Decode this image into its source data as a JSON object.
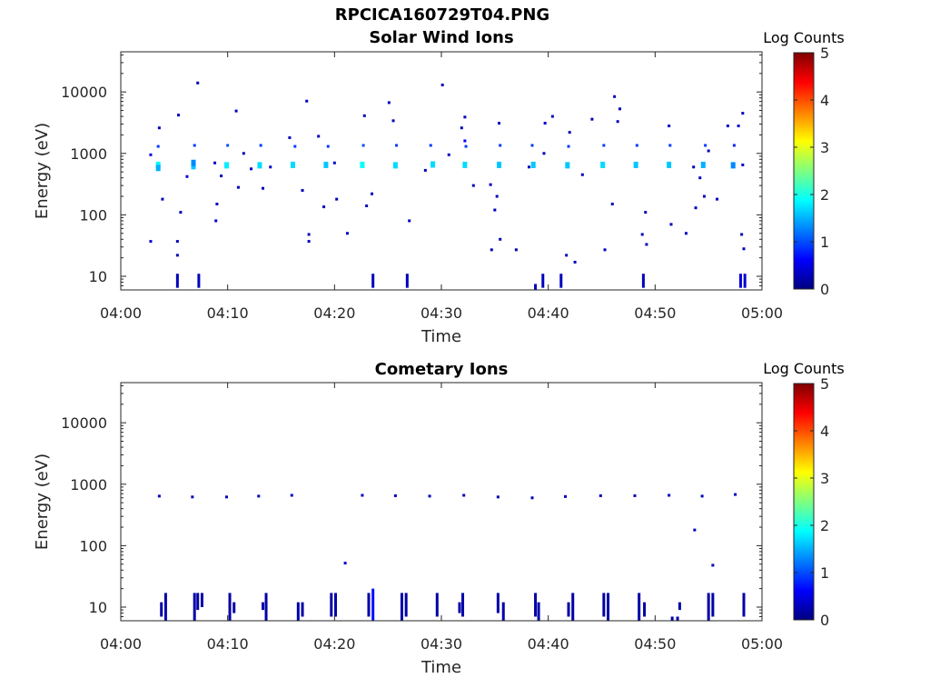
{
  "figure": {
    "title": "RPCICA160729T04.PNG"
  },
  "colormap": {
    "stops": [
      "#00007f",
      "#0000ff",
      "#007fff",
      "#00ffff",
      "#7fff7f",
      "#ffff00",
      "#ff7f00",
      "#ff0000",
      "#7f0000"
    ]
  },
  "chart_data": [
    {
      "type": "heatmap",
      "title": "Solar Wind Ions",
      "xlabel": "Time",
      "ylabel": "Energy (eV)",
      "x_unit": "minutes after 04:00",
      "x_range": [
        0,
        60
      ],
      "x_ticks": [
        0,
        10,
        20,
        30,
        40,
        50,
        60
      ],
      "x_tick_labels": [
        "04:00",
        "04:10",
        "04:20",
        "04:30",
        "04:40",
        "04:50",
        "05:00"
      ],
      "y_scale": "log",
      "y_range": [
        6,
        45000
      ],
      "y_ticks": [
        10,
        100,
        1000,
        10000
      ],
      "y_tick_labels": [
        "10",
        "100",
        "1000",
        "10000"
      ],
      "colorbar": {
        "label": "Log Counts",
        "range": [
          0,
          5
        ],
        "ticks": [
          0,
          1,
          2,
          3,
          4,
          5
        ]
      },
      "points": [
        [
          3.5,
          650,
          1.9
        ],
        [
          3.5,
          580,
          1.5
        ],
        [
          3.5,
          1300,
          0.9
        ],
        [
          2.8,
          950,
          0.4
        ],
        [
          3.6,
          2600,
          0.3
        ],
        [
          2.8,
          37,
          0.4
        ],
        [
          6.8,
          620,
          1.6
        ],
        [
          6.8,
          700,
          1.3
        ],
        [
          6.9,
          1350,
          0.9
        ],
        [
          6.2,
          420,
          0.4
        ],
        [
          5.6,
          110,
          0.3
        ],
        [
          5.4,
          4200,
          0.3
        ],
        [
          5.3,
          37,
          0.3
        ],
        [
          5.3,
          22,
          0.3
        ],
        [
          9.9,
          640,
          1.8
        ],
        [
          10.0,
          1350,
          1.0
        ],
        [
          9.0,
          150,
          0.3
        ],
        [
          8.9,
          80,
          0.4
        ],
        [
          8.8,
          700,
          0.3
        ],
        [
          10.8,
          4900,
          0.3
        ],
        [
          11.0,
          280,
          0.3
        ],
        [
          13.0,
          640,
          1.7
        ],
        [
          13.1,
          1350,
          0.9
        ],
        [
          14.0,
          600,
          0.3
        ],
        [
          12.2,
          560,
          0.3
        ],
        [
          13.3,
          270,
          0.3
        ],
        [
          15.8,
          1800,
          0.3
        ],
        [
          16.1,
          650,
          1.7
        ],
        [
          16.3,
          1300,
          0.9
        ],
        [
          17.4,
          7100,
          0.3
        ],
        [
          17.0,
          250,
          0.3
        ],
        [
          17.6,
          48,
          0.3
        ],
        [
          17.6,
          37,
          0.3
        ],
        [
          19.2,
          650,
          1.6
        ],
        [
          19.4,
          1300,
          0.9
        ],
        [
          20.0,
          700,
          0.4
        ],
        [
          18.5,
          1900,
          0.3
        ],
        [
          19.0,
          135,
          0.3
        ],
        [
          20.2,
          180,
          0.3
        ],
        [
          21.2,
          50,
          0.3
        ],
        [
          22.6,
          650,
          1.9
        ],
        [
          22.7,
          1350,
          1.0
        ],
        [
          23.5,
          220,
          0.3
        ],
        [
          23.0,
          140,
          0.3
        ],
        [
          22.8,
          4100,
          0.3
        ],
        [
          25.1,
          6700,
          0.3
        ],
        [
          25.5,
          3400,
          0.3
        ],
        [
          25.7,
          640,
          1.7
        ],
        [
          25.8,
          1350,
          0.9
        ],
        [
          27.0,
          80,
          0.3
        ],
        [
          29.2,
          660,
          1.7
        ],
        [
          29.0,
          1350,
          0.9
        ],
        [
          28.5,
          530,
          0.3
        ],
        [
          30.1,
          13000,
          0.3
        ],
        [
          30.7,
          950,
          0.3
        ],
        [
          32.2,
          3900,
          0.3
        ],
        [
          31.9,
          2600,
          0.3
        ],
        [
          32.2,
          650,
          1.7
        ],
        [
          32.3,
          1300,
          0.9
        ],
        [
          32.2,
          1600,
          0.6
        ],
        [
          33.0,
          300,
          0.3
        ],
        [
          34.6,
          310,
          0.3
        ],
        [
          35.4,
          650,
          1.6
        ],
        [
          35.5,
          1350,
          0.9
        ],
        [
          35.4,
          3100,
          0.3
        ],
        [
          35.2,
          200,
          0.3
        ],
        [
          35.0,
          120,
          0.3
        ],
        [
          35.5,
          40,
          0.3
        ],
        [
          34.7,
          27,
          0.3
        ],
        [
          38.6,
          650,
          1.6
        ],
        [
          38.5,
          1350,
          0.9
        ],
        [
          39.6,
          1000,
          0.3
        ],
        [
          39.7,
          3100,
          0.4
        ],
        [
          40.4,
          4000,
          0.3
        ],
        [
          38.2,
          600,
          0.3
        ],
        [
          37.0,
          27,
          0.3
        ],
        [
          41.8,
          640,
          1.6
        ],
        [
          41.9,
          1300,
          0.9
        ],
        [
          42.0,
          2200,
          0.3
        ],
        [
          43.2,
          450,
          0.3
        ],
        [
          44.1,
          3600,
          0.3
        ],
        [
          41.7,
          22,
          0.3
        ],
        [
          42.5,
          17,
          0.3
        ],
        [
          45.1,
          650,
          1.7
        ],
        [
          45.2,
          1350,
          0.9
        ],
        [
          45.3,
          27,
          0.3
        ],
        [
          46.0,
          150,
          0.3
        ],
        [
          46.2,
          8400,
          0.3
        ],
        [
          46.7,
          5300,
          0.3
        ],
        [
          46.5,
          3300,
          0.3
        ],
        [
          48.2,
          650,
          1.6
        ],
        [
          48.3,
          1350,
          0.9
        ],
        [
          48.8,
          48,
          0.3
        ],
        [
          49.1,
          110,
          0.3
        ],
        [
          49.2,
          33,
          0.3
        ],
        [
          51.3,
          650,
          1.6
        ],
        [
          51.4,
          1350,
          0.9
        ],
        [
          51.3,
          2800,
          0.3
        ],
        [
          51.5,
          70,
          0.3
        ],
        [
          52.9,
          50,
          0.3
        ],
        [
          53.8,
          130,
          0.3
        ],
        [
          54.5,
          650,
          1.5
        ],
        [
          54.7,
          1350,
          0.9
        ],
        [
          53.6,
          600,
          0.3
        ],
        [
          54.2,
          400,
          0.3
        ],
        [
          54.6,
          200,
          0.3
        ],
        [
          55.0,
          1100,
          0.3
        ],
        [
          55.8,
          180,
          0.3
        ],
        [
          57.3,
          640,
          1.3
        ],
        [
          57.4,
          1350,
          0.8
        ],
        [
          56.8,
          2800,
          0.3
        ],
        [
          57.8,
          2800,
          0.4
        ],
        [
          58.2,
          4500,
          0.3
        ],
        [
          58.2,
          650,
          0.3
        ],
        [
          58.1,
          48,
          0.3
        ],
        [
          58.3,
          28,
          0.3
        ],
        [
          7.2,
          14000,
          0.3
        ],
        [
          3.9,
          180,
          0.3
        ],
        [
          9.4,
          430,
          0.3
        ],
        [
          11.5,
          1000,
          0.3
        ]
      ],
      "vbars": [
        [
          5.3,
          6.5,
          11,
          0.3
        ],
        [
          7.3,
          6.5,
          11,
          0.3
        ],
        [
          23.6,
          6.5,
          11,
          0.3
        ],
        [
          26.8,
          6.5,
          11,
          0.3
        ],
        [
          38.8,
          6,
          7.5,
          0.3
        ],
        [
          39.5,
          6.5,
          11,
          0.3
        ],
        [
          41.2,
          6.5,
          11,
          0.3
        ],
        [
          48.9,
          6.5,
          11,
          0.3
        ],
        [
          58.0,
          6.5,
          11,
          0.4
        ],
        [
          58.4,
          6.5,
          11,
          0.4
        ]
      ]
    },
    {
      "type": "heatmap",
      "title": "Cometary Ions",
      "xlabel": "Time",
      "ylabel": "Energy (eV)",
      "x_unit": "minutes after 04:00",
      "x_range": [
        0,
        60
      ],
      "x_ticks": [
        0,
        10,
        20,
        30,
        40,
        50,
        60
      ],
      "x_tick_labels": [
        "04:00",
        "04:10",
        "04:20",
        "04:30",
        "04:40",
        "04:50",
        "05:00"
      ],
      "y_scale": "log",
      "y_range": [
        6,
        45000
      ],
      "y_ticks": [
        10,
        100,
        1000,
        10000
      ],
      "y_tick_labels": [
        "10",
        "100",
        "1000",
        "10000"
      ],
      "colorbar": {
        "label": "Log Counts",
        "range": [
          0,
          5
        ],
        "ticks": [
          0,
          1,
          2,
          3,
          4,
          5
        ]
      },
      "points": [
        [
          3.6,
          640,
          0.3
        ],
        [
          6.7,
          620,
          0.3
        ],
        [
          9.9,
          620,
          0.3
        ],
        [
          12.9,
          640,
          0.3
        ],
        [
          16.0,
          660,
          0.3
        ],
        [
          22.6,
          660,
          0.3
        ],
        [
          25.7,
          650,
          0.3
        ],
        [
          28.9,
          640,
          0.3
        ],
        [
          32.1,
          660,
          0.3
        ],
        [
          35.3,
          620,
          0.3
        ],
        [
          38.5,
          600,
          0.3
        ],
        [
          41.6,
          630,
          0.3
        ],
        [
          44.9,
          650,
          0.3
        ],
        [
          48.1,
          650,
          0.3
        ],
        [
          51.3,
          660,
          0.3
        ],
        [
          54.4,
          640,
          0.3
        ],
        [
          57.5,
          680,
          0.3
        ],
        [
          53.7,
          180,
          0.3
        ],
        [
          21.0,
          52,
          0.3
        ],
        [
          55.4,
          48,
          0.3
        ]
      ],
      "vbars": [
        [
          3.8,
          7,
          12,
          0.2
        ],
        [
          4.2,
          6,
          17,
          0.2
        ],
        [
          6.9,
          6,
          17,
          0.2
        ],
        [
          7.2,
          9,
          17,
          0.2
        ],
        [
          7.6,
          10,
          17,
          0.2
        ],
        [
          10.2,
          6,
          17,
          0.2
        ],
        [
          10.6,
          8,
          12,
          0.2
        ],
        [
          13.3,
          9,
          12,
          0.2
        ],
        [
          13.6,
          6,
          17,
          0.2
        ],
        [
          16.6,
          6,
          12,
          0.2
        ],
        [
          17.0,
          7,
          12,
          0.2
        ],
        [
          19.7,
          7,
          17,
          0.2
        ],
        [
          20.1,
          7,
          17,
          0.2
        ],
        [
          23.2,
          7,
          17,
          0.2
        ],
        [
          23.6,
          6,
          20,
          0.7
        ],
        [
          26.3,
          6,
          17,
          0.2
        ],
        [
          26.7,
          7,
          17,
          0.2
        ],
        [
          29.6,
          7,
          17,
          0.2
        ],
        [
          31.7,
          8,
          12,
          0.2
        ],
        [
          32.0,
          7,
          17,
          0.2
        ],
        [
          35.3,
          8,
          17,
          0.2
        ],
        [
          35.8,
          6,
          12,
          0.2
        ],
        [
          38.8,
          7,
          17,
          0.2
        ],
        [
          39.1,
          6,
          12,
          0.2
        ],
        [
          41.9,
          7,
          12,
          0.2
        ],
        [
          42.3,
          6,
          17,
          0.2
        ],
        [
          45.2,
          7,
          17,
          0.2
        ],
        [
          45.6,
          6,
          17,
          0.2
        ],
        [
          48.5,
          6,
          17,
          0.2
        ],
        [
          49.0,
          7,
          12,
          0.2
        ],
        [
          51.6,
          6,
          7,
          0.2
        ],
        [
          52.1,
          6,
          7,
          0.2
        ],
        [
          52.3,
          9,
          12,
          0.2
        ],
        [
          55.0,
          6,
          17,
          0.2
        ],
        [
          55.4,
          7,
          17,
          0.2
        ],
        [
          58.3,
          7,
          17,
          0.2
        ]
      ]
    }
  ]
}
